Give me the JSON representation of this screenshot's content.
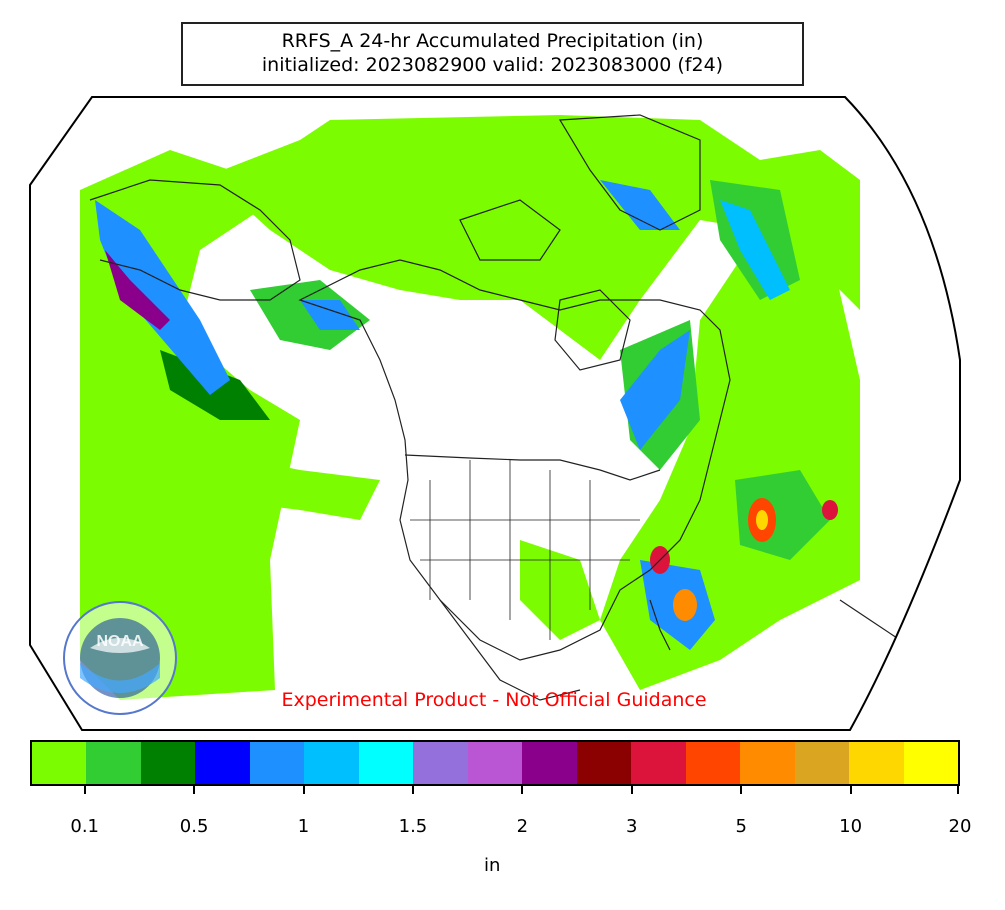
{
  "title": {
    "line1": "RRFS_A 24-hr Accumulated Precipitation (in)",
    "line2": "initialized: 2023082900 valid: 2023083000 (f24)"
  },
  "disclaimer": "Experimental Product - Not Official Guidance",
  "logo": {
    "text": "NOAA",
    "ring_text": "NATIONAL OCEANIC AND ATMOSPHERIC ADMINISTRATION · U.S. DEPARTMENT OF COMMERCE"
  },
  "colorbar": {
    "colors": [
      "#7CFC00",
      "#32CD32",
      "#008000",
      "#0000FF",
      "#1E90FF",
      "#00BFFF",
      "#00FFFF",
      "#9370DB",
      "#BA55D3",
      "#8B008B",
      "#8B0000",
      "#DC143C",
      "#FF4500",
      "#FF8C00",
      "#DAA520",
      "#FFD700",
      "#FFFF00"
    ],
    "tick_labels": [
      "0.1",
      "0.5",
      "1",
      "1.5",
      "2",
      "3",
      "5",
      "10",
      "20"
    ],
    "units_label": "in"
  },
  "colors": {
    "light_green": "#7CFC00",
    "mid_green": "#32CD32",
    "dark_green": "#008000",
    "blue": "#1E90FF",
    "cyan": "#00BFFF",
    "purple": "#8B008B",
    "red": "#DC143C",
    "orange": "#FF8C00"
  }
}
